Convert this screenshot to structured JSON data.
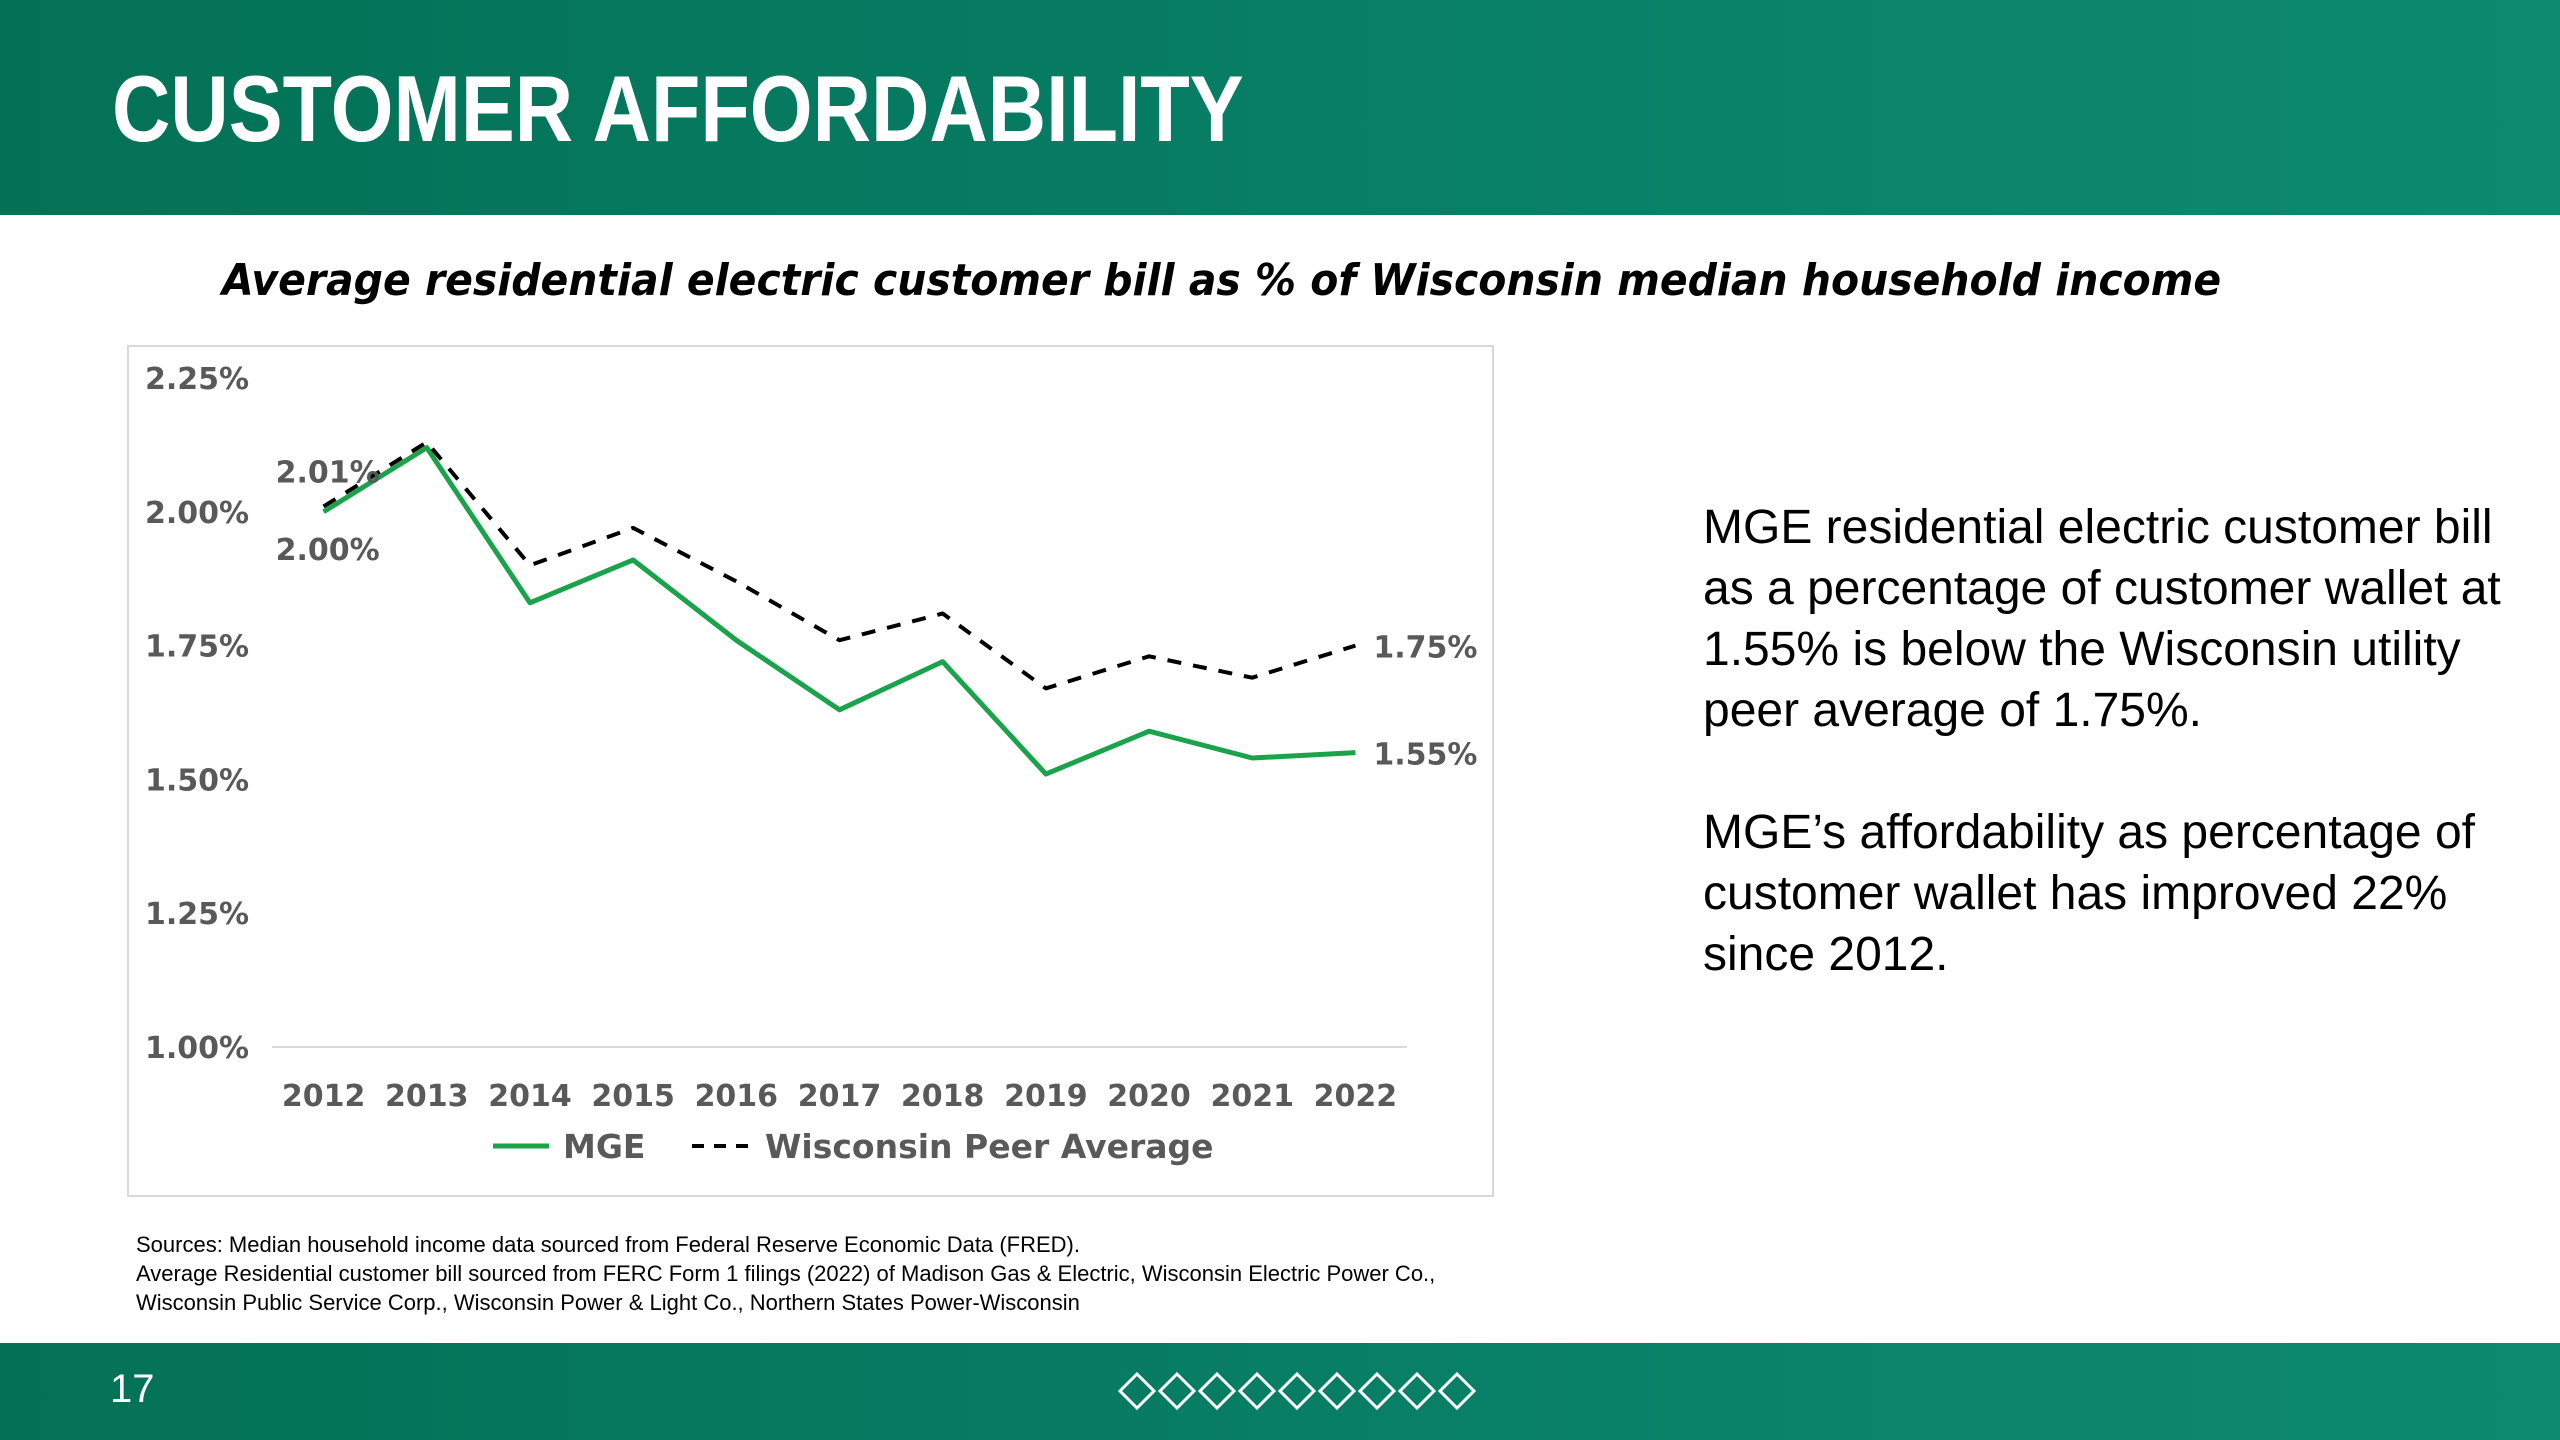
{
  "header": {
    "title": "CUSTOMER AFFORDABILITY"
  },
  "subtitle": "Average residential electric customer bill as % of Wisconsin median household income",
  "chart_data": {
    "type": "line",
    "title": "Average residential electric customer bill as % of Wisconsin median household income",
    "categories": [
      "2012",
      "2013",
      "2014",
      "2015",
      "2016",
      "2017",
      "2018",
      "2019",
      "2020",
      "2021",
      "2022"
    ],
    "series": [
      {
        "name": "MGE",
        "color": "#1aa34a",
        "style": "solid",
        "values": [
          2.0,
          2.12,
          1.83,
          1.91,
          1.76,
          1.63,
          1.72,
          1.51,
          1.59,
          1.54,
          1.55
        ]
      },
      {
        "name": "Wisconsin Peer Average",
        "color": "#000000",
        "style": "dashed",
        "values": [
          2.01,
          2.13,
          1.9,
          1.97,
          1.87,
          1.76,
          1.81,
          1.67,
          1.73,
          1.69,
          1.75
        ]
      }
    ],
    "y_ticks": [
      "2.25%",
      "2.00%",
      "1.75%",
      "1.50%",
      "1.25%",
      "1.00%"
    ],
    "y_tick_values": [
      2.25,
      2.0,
      1.75,
      1.5,
      1.25,
      1.0
    ],
    "ylim": [
      1.0,
      2.25
    ],
    "data_labels": [
      {
        "text": "2.01%",
        "series": "Wisconsin Peer Average",
        "category": "2012"
      },
      {
        "text": "2.00%",
        "series": "MGE",
        "category": "2012"
      },
      {
        "text": "1.75%",
        "series": "Wisconsin Peer Average",
        "category": "2022"
      },
      {
        "text": "1.55%",
        "series": "MGE",
        "category": "2022"
      }
    ],
    "legend": {
      "position": "bottom",
      "entries": [
        "MGE",
        "Wisconsin Peer Average"
      ]
    },
    "grid": false
  },
  "right_text": {
    "paragraph1": "MGE residential electric customer bill as a percentage of customer wallet at 1.55% is below the Wisconsin utility peer average of 1.75%.",
    "paragraph2": "MGE’s affordability as percentage of customer wallet has improved 22% since 2012."
  },
  "sources": {
    "line1": "Sources: Median household income data sourced from Federal Reserve Economic Data (FRED).",
    "line2": "Average Residential customer bill sourced from FERC Form 1 filings (2022) of Madison Gas & Electric, Wisconsin Electric Power Co.,",
    "line3": "Wisconsin Public Service Corp., Wisconsin Power & Light Co., Northern States Power-Wisconsin"
  },
  "footer": {
    "page_number": "17",
    "diamond_count": 9
  },
  "colors": {
    "brand_green": "#037155",
    "mge_line": "#1aa34a",
    "peer_line": "#000000"
  }
}
